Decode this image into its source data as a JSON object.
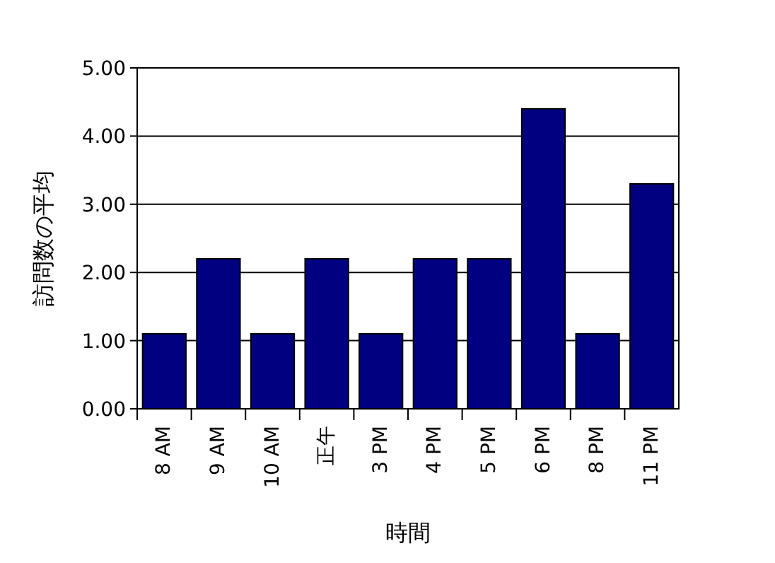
{
  "chart_data": {
    "type": "bar",
    "xlabel": "時間",
    "ylabel": "訪問数の平均",
    "categories": [
      "8 AM",
      "9 AM",
      "10 AM",
      "正午",
      "3 PM",
      "4 PM",
      "5 PM",
      "6 PM",
      "8 PM",
      "11 PM"
    ],
    "values": [
      1.1,
      2.2,
      1.1,
      2.2,
      1.1,
      2.2,
      2.2,
      4.4,
      1.1,
      3.3
    ],
    "color": "#000080",
    "ylim": [
      0,
      5
    ],
    "yticks": [
      {
        "value": 0,
        "label": "0.00"
      },
      {
        "value": 1,
        "label": "1.00"
      },
      {
        "value": 2,
        "label": "2.00"
      },
      {
        "value": 3,
        "label": "3.00"
      },
      {
        "value": 4,
        "label": "4.00"
      },
      {
        "value": 5,
        "label": "5.00"
      }
    ],
    "grid": "y"
  }
}
